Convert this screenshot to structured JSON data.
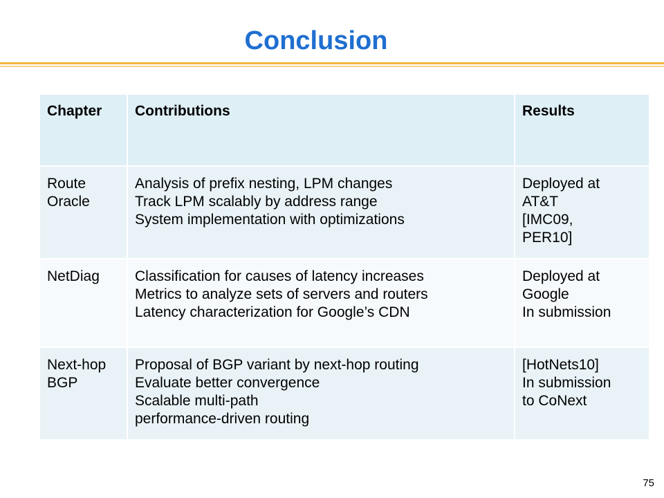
{
  "slide": {
    "title": "Conclusion",
    "page_number": "75"
  },
  "table": {
    "headers": [
      "Chapter",
      "Contributions",
      "Results"
    ],
    "rows": [
      {
        "chapter": [
          "Route",
          "Oracle"
        ],
        "contributions": [
          "Analysis of prefix nesting, LPM changes",
          "Track LPM scalably by address range",
          "System implementation with optimizations"
        ],
        "results": [
          "Deployed at",
          "AT&T",
          "[IMC09,",
          "PER10]"
        ]
      },
      {
        "chapter": [
          "NetDiag"
        ],
        "contributions": [
          "Classification for causes of latency increases",
          "Metrics to analyze sets of servers and routers",
          "Latency characterization for Google’s CDN"
        ],
        "results": [
          "Deployed at",
          "Google",
          "In submission"
        ]
      },
      {
        "chapter": [
          "Next-hop",
          "BGP"
        ],
        "contributions": [
          "Proposal of BGP variant by next-hop routing",
          "Evaluate better convergence",
          "Scalable multi-path",
          "performance-driven routing"
        ],
        "results": [
          "[HotNets10]",
          "In submission",
          "to CoNext"
        ]
      }
    ]
  },
  "colors": {
    "title": "#1f6fd0",
    "rule": "#f3b33d",
    "header_bg": "#deeff6",
    "row_bg_a": "#e9f3f7",
    "row_bg_b": "#f6fafc"
  }
}
